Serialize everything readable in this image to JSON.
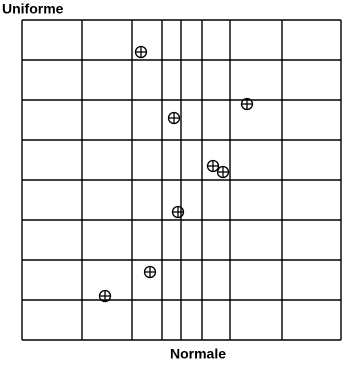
{
  "chart_data": {
    "type": "scatter",
    "ylabel": "Uniforme",
    "xlabel": "Normale",
    "x": [
      119,
      152,
      225,
      191,
      201,
      156,
      128,
      83
    ],
    "values": [
      7.2,
      5.55,
      5.9,
      4.35,
      4.2,
      3.2,
      1.7,
      1.1
    ],
    "color": "#000000",
    "xlim": [
      0,
      319
    ],
    "ylim": [
      0,
      8
    ],
    "xticks": [
      0,
      60,
      110,
      140,
      159,
      180,
      208,
      260,
      319
    ],
    "yticks": [
      0,
      1,
      2,
      3,
      4,
      5,
      6,
      7,
      8
    ],
    "grid": true,
    "tick_labels": false
  }
}
